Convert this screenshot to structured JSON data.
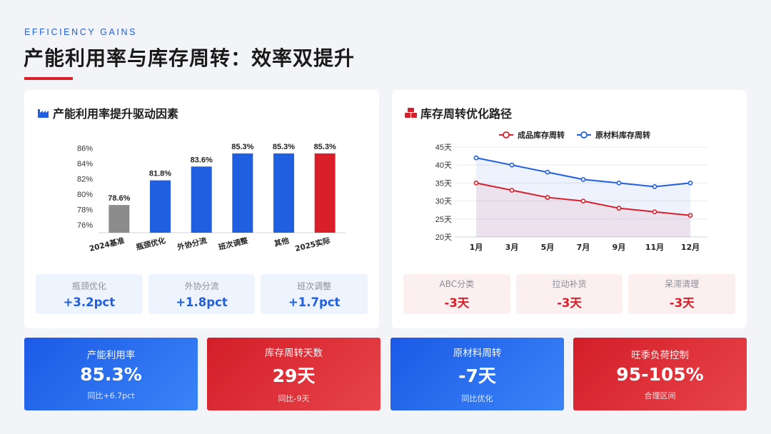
{
  "header": {
    "eyebrow": "EFFICIENCY GAINS",
    "title": "产能利用率与库存周转：效率双提升"
  },
  "left_panel": {
    "title": "产能利用率提升驱动因素",
    "icon": "factory-icon",
    "mini_cards": [
      {
        "label": "瓶颈优化",
        "value": "+3.2pct"
      },
      {
        "label": "外协分流",
        "value": "+1.8pct"
      },
      {
        "label": "班次调整",
        "value": "+1.7pct"
      }
    ]
  },
  "right_panel": {
    "title": "库存周转优化路径",
    "icon": "boxes-icon",
    "mini_cards": [
      {
        "label": "ABC分类",
        "value": "-3天"
      },
      {
        "label": "拉动补货",
        "value": "-3天"
      },
      {
        "label": "呆滞清理",
        "value": "-3天"
      }
    ]
  },
  "kpis": [
    {
      "label": "产能利用率",
      "value": "85.3%",
      "sub": "同比+6.7pct",
      "color": "blue"
    },
    {
      "label": "库存周转天数",
      "value": "29天",
      "sub": "同比-9天",
      "color": "red"
    },
    {
      "label": "原材料周转",
      "value": "-7天",
      "sub": "同比优化",
      "color": "blue"
    },
    {
      "label": "旺季负荷控制",
      "value": "95-105%",
      "sub": "合理区间",
      "color": "red"
    }
  ],
  "colors": {
    "blue": "#1f5fe0",
    "red": "#d81f2a",
    "gray": "#8c8c8c"
  },
  "chart_data": [
    {
      "type": "bar",
      "categories": [
        "2024基准",
        "瓶颈优化",
        "外协分流",
        "班次调整",
        "其他",
        "2025实际"
      ],
      "values": [
        78.6,
        81.8,
        83.6,
        85.3,
        85.3,
        85.3
      ],
      "data_labels": [
        "78.6%",
        "81.8%",
        "83.6%",
        "85.3%",
        "85.3%",
        "85.3%"
      ],
      "bar_colors": [
        "#8c8c8c",
        "#1f5fe0",
        "#1f5fe0",
        "#1f5fe0",
        "#1f5fe0",
        "#d81f2a"
      ],
      "yticks": [
        76,
        78,
        80,
        82,
        84,
        86
      ],
      "ytick_labels": [
        "76%",
        "78%",
        "80%",
        "82%",
        "84%",
        "86%"
      ],
      "ylim": [
        75,
        86.5
      ],
      "grid": false
    },
    {
      "type": "line",
      "x": [
        "1月",
        "3月",
        "5月",
        "7月",
        "9月",
        "11月",
        "12月"
      ],
      "series": [
        {
          "name": "成品库存周转",
          "color": "#d81f2a",
          "values": [
            35,
            33,
            31,
            30,
            28,
            27,
            26
          ]
        },
        {
          "name": "原材料库存周转",
          "color": "#1f5fe0",
          "values": [
            42,
            40,
            38,
            36,
            35,
            34,
            35
          ]
        }
      ],
      "yticks": [
        20,
        25,
        30,
        35,
        40,
        45
      ],
      "ytick_labels": [
        "20天",
        "25天",
        "30天",
        "35天",
        "40天",
        "45天"
      ],
      "ylim": [
        20,
        45
      ],
      "legend": "top",
      "grid": true,
      "area_fill": true
    }
  ]
}
